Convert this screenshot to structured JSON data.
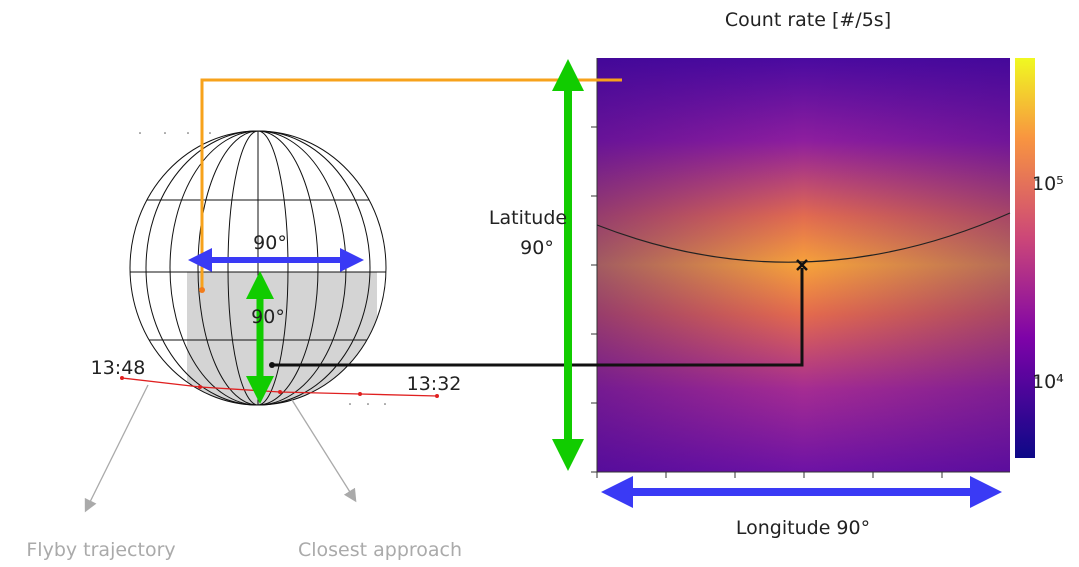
{
  "colorbar": {
    "title": "Count rate [#/5s]",
    "ticks": [
      "10⁵",
      "10⁴"
    ]
  },
  "map": {
    "latitude_label": "Latitude",
    "latitude_span": "90°",
    "longitude_label": "Longitude  90°"
  },
  "globe": {
    "longitude_span": "90°",
    "latitude_span": "90°",
    "start_time": "13:48",
    "end_time": "13:32"
  },
  "annotations": {
    "trajectory": "Flyby trajectory",
    "closest": "Closest approach"
  }
}
